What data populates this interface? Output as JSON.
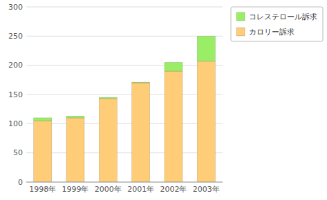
{
  "chart_data": {
    "type": "bar",
    "stacked": true,
    "categories": [
      "1998年",
      "1999年",
      "2000年",
      "2001年",
      "2002年",
      "2003年"
    ],
    "series": [
      {
        "name": "カロリー訴求",
        "color": "#FFCC77",
        "values": [
          105,
          110,
          143,
          170,
          190,
          207
        ]
      },
      {
        "name": "コレステロール訴求",
        "color": "#99EE66",
        "values": [
          5,
          3,
          2,
          1,
          15,
          43
        ]
      }
    ],
    "ylim": [
      0,
      300
    ],
    "yticks": [
      0,
      50,
      100,
      150,
      200,
      250,
      300
    ],
    "grid": true,
    "legend": "right"
  }
}
